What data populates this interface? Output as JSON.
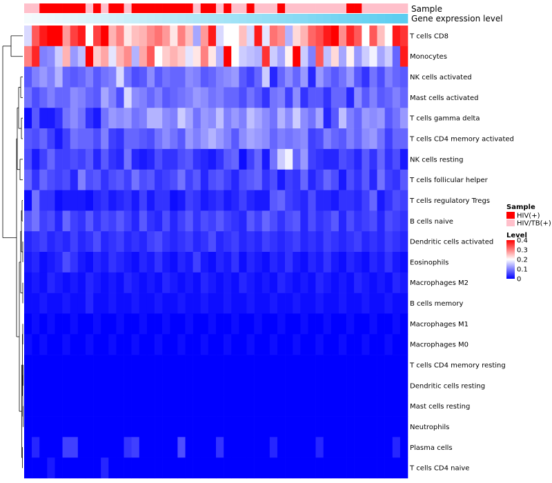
{
  "chart_data": {
    "type": "heatmap",
    "title": "",
    "annotation_labels": {
      "sample": "Sample",
      "gene": "Gene expression level"
    },
    "sample_groups": [
      "HIV/TB(+)",
      "HIV/TB(+)",
      "HIV(+)",
      "HIV(+)",
      "HIV(+)",
      "HIV(+)",
      "HIV(+)",
      "HIV(+)",
      "HIV/TB(+)",
      "HIV(+)",
      "HIV/TB(+)",
      "HIV(+)",
      "HIV(+)",
      "HIV/TB(+)",
      "HIV(+)",
      "HIV(+)",
      "HIV(+)",
      "HIV(+)",
      "HIV(+)",
      "HIV(+)",
      "HIV(+)",
      "HIV(+)",
      "HIV/TB(+)",
      "HIV(+)",
      "HIV(+)",
      "HIV/TB(+)",
      "HIV(+)",
      "HIV/TB(+)",
      "HIV/TB(+)",
      "HIV(+)",
      "HIV/TB(+)",
      "HIV/TB(+)",
      "HIV/TB(+)",
      "HIV(+)",
      "HIV/TB(+)",
      "HIV/TB(+)",
      "HIV/TB(+)",
      "HIV/TB(+)",
      "HIV/TB(+)",
      "HIV/TB(+)",
      "HIV/TB(+)",
      "HIV/TB(+)",
      "HIV(+)",
      "HIV(+)",
      "HIV/TB(+)",
      "HIV/TB(+)",
      "HIV/TB(+)",
      "HIV/TB(+)",
      "HIV/TB(+)",
      "HIV/TB(+)"
    ],
    "gene_expression": [
      0.0,
      0.02,
      0.04,
      0.06,
      0.08,
      0.1,
      0.12,
      0.14,
      0.16,
      0.18,
      0.2,
      0.22,
      0.24,
      0.27,
      0.29,
      0.31,
      0.33,
      0.35,
      0.37,
      0.39,
      0.41,
      0.43,
      0.45,
      0.47,
      0.49,
      0.51,
      0.53,
      0.55,
      0.57,
      0.59,
      0.61,
      0.63,
      0.65,
      0.67,
      0.69,
      0.71,
      0.73,
      0.76,
      0.78,
      0.8,
      0.82,
      0.84,
      0.86,
      0.88,
      0.9,
      0.92,
      0.94,
      0.96,
      0.98,
      1.0
    ],
    "rows": [
      "T cells CD8",
      "Monocytes",
      "NK cells activated",
      "Mast cells activated",
      "T cells gamma delta",
      "T cells CD4 memory activated",
      "NK cells resting",
      "T cells follicular helper",
      "T cells regulatory  Tregs",
      "B cells naive",
      "Dendritic cells activated",
      "Eosinophils",
      "Macrophages M2",
      "B cells memory",
      "Macrophages M1",
      "Macrophages M0",
      "T cells CD4 memory resting",
      "Dendritic cells resting",
      "Mast cells resting",
      "Neutrophils",
      "Plasma cells",
      "T cells CD4 naive"
    ],
    "values": [
      [
        0.17,
        0.33,
        0.38,
        0.4,
        0.4,
        0.28,
        0.35,
        0.38,
        0.2,
        0.35,
        0.4,
        0.26,
        0.3,
        0.22,
        0.25,
        0.26,
        0.29,
        0.31,
        0.28,
        0.22,
        0.3,
        0.25,
        0.13,
        0.28,
        0.38,
        0.17,
        0.2,
        0.2,
        0.25,
        0.17,
        0.38,
        0.18,
        0.31,
        0.29,
        0.14,
        0.23,
        0.26,
        0.32,
        0.34,
        0.38,
        0.4,
        0.29,
        0.37,
        0.33,
        0.2,
        0.33,
        0.25,
        0.2,
        0.38,
        0.36
      ],
      [
        0.3,
        0.37,
        0.1,
        0.11,
        0.16,
        0.26,
        0.12,
        0.15,
        0.4,
        0.24,
        0.27,
        0.18,
        0.26,
        0.29,
        0.14,
        0.27,
        0.33,
        0.2,
        0.24,
        0.26,
        0.24,
        0.18,
        0.22,
        0.3,
        0.22,
        0.14,
        0.4,
        0.2,
        0.16,
        0.15,
        0.14,
        0.36,
        0.16,
        0.13,
        0.21,
        0.4,
        0.16,
        0.1,
        0.33,
        0.15,
        0.23,
        0.13,
        0.21,
        0.12,
        0.16,
        0.19,
        0.13,
        0.16,
        0.08,
        0.38
      ],
      [
        0.07,
        0.1,
        0.12,
        0.1,
        0.14,
        0.08,
        0.07,
        0.08,
        0.1,
        0.07,
        0.09,
        0.1,
        0.17,
        0.09,
        0.06,
        0.07,
        0.11,
        0.07,
        0.09,
        0.08,
        0.08,
        0.11,
        0.1,
        0.07,
        0.08,
        0.1,
        0.11,
        0.12,
        0.07,
        0.05,
        0.08,
        0.16,
        0.03,
        0.08,
        0.11,
        0.08,
        0.12,
        0.03,
        0.12,
        0.09,
        0.07,
        0.09,
        0.12,
        0.07,
        0.04,
        0.09,
        0.06,
        0.1,
        0.08,
        0.07
      ],
      [
        0.09,
        0.06,
        0.08,
        0.1,
        0.08,
        0.08,
        0.11,
        0.1,
        0.08,
        0.07,
        0.13,
        0.1,
        0.06,
        0.17,
        0.11,
        0.1,
        0.08,
        0.1,
        0.07,
        0.08,
        0.09,
        0.1,
        0.12,
        0.11,
        0.09,
        0.1,
        0.08,
        0.08,
        0.06,
        0.09,
        0.07,
        0.04,
        0.09,
        0.1,
        0.05,
        0.11,
        0.04,
        0.07,
        0.07,
        0.04,
        0.08,
        0.08,
        0.03,
        0.11,
        0.07,
        0.1,
        0.07,
        0.08,
        0.1,
        0.08
      ],
      [
        0.01,
        0.07,
        0.02,
        0.02,
        0.04,
        0.09,
        0.11,
        0.09,
        0.04,
        0.02,
        0.09,
        0.12,
        0.11,
        0.12,
        0.09,
        0.1,
        0.14,
        0.14,
        0.11,
        0.1,
        0.16,
        0.13,
        0.09,
        0.12,
        0.11,
        0.15,
        0.1,
        0.12,
        0.1,
        0.15,
        0.13,
        0.11,
        0.09,
        0.14,
        0.11,
        0.16,
        0.11,
        0.09,
        0.13,
        0.03,
        0.07,
        0.15,
        0.1,
        0.08,
        0.12,
        0.11,
        0.12,
        0.07,
        0.09,
        0.12
      ],
      [
        0.07,
        0.06,
        0.08,
        0.05,
        0.02,
        0.05,
        0.09,
        0.08,
        0.08,
        0.06,
        0.1,
        0.05,
        0.04,
        0.08,
        0.08,
        0.07,
        0.06,
        0.09,
        0.11,
        0.09,
        0.07,
        0.12,
        0.1,
        0.12,
        0.14,
        0.12,
        0.1,
        0.07,
        0.11,
        0.13,
        0.12,
        0.11,
        0.08,
        0.1,
        0.09,
        0.1,
        0.11,
        0.05,
        0.06,
        0.1,
        0.08,
        0.07,
        0.1,
        0.08,
        0.11,
        0.12,
        0.09,
        0.05,
        0.08,
        0.08
      ],
      [
        0.06,
        0.02,
        0.05,
        0.08,
        0.05,
        0.05,
        0.06,
        0.05,
        0.07,
        0.03,
        0.07,
        0.04,
        0.03,
        0.09,
        0.03,
        0.02,
        0.03,
        0.06,
        0.04,
        0.04,
        0.06,
        0.07,
        0.04,
        0.03,
        0.02,
        0.04,
        0.07,
        0.08,
        0.01,
        0.05,
        0.08,
        0.02,
        0.09,
        0.16,
        0.19,
        0.08,
        0.12,
        0.05,
        0.04,
        0.03,
        0.03,
        0.06,
        0.05,
        0.03,
        0.07,
        0.04,
        0.08,
        0.04,
        0.06,
        0.02
      ],
      [
        0.08,
        0.04,
        0.08,
        0.06,
        0.05,
        0.06,
        0.03,
        0.1,
        0.06,
        0.07,
        0.04,
        0.06,
        0.07,
        0.05,
        0.09,
        0.06,
        0.07,
        0.04,
        0.05,
        0.06,
        0.09,
        0.05,
        0.07,
        0.03,
        0.06,
        0.07,
        0.05,
        0.03,
        0.06,
        0.07,
        0.08,
        0.04,
        0.06,
        0.02,
        0.05,
        0.04,
        0.08,
        0.03,
        0.05,
        0.08,
        0.06,
        0.02,
        0.06,
        0.04,
        0.07,
        0.03,
        0.09,
        0.05,
        0.04,
        0.07
      ],
      [
        0.01,
        0.09,
        0.04,
        0.04,
        0.01,
        0.02,
        0.02,
        0.02,
        0.01,
        0.03,
        0.04,
        0.02,
        0.03,
        0.04,
        0.02,
        0.05,
        0.02,
        0.04,
        0.04,
        0.01,
        0.02,
        0.05,
        0.04,
        0.02,
        0.03,
        0.04,
        0.02,
        0.03,
        0.05,
        0.03,
        0.02,
        0.02,
        0.07,
        0.08,
        0.05,
        0.04,
        0.03,
        0.06,
        0.03,
        0.03,
        0.02,
        0.04,
        0.04,
        0.03,
        0.05,
        0.08,
        0.02,
        0.04,
        0.06,
        0.05
      ],
      [
        0.07,
        0.09,
        0.05,
        0.06,
        0.03,
        0.08,
        0.05,
        0.04,
        0.07,
        0.04,
        0.06,
        0.05,
        0.07,
        0.05,
        0.03,
        0.07,
        0.04,
        0.03,
        0.06,
        0.03,
        0.05,
        0.07,
        0.04,
        0.06,
        0.05,
        0.07,
        0.05,
        0.04,
        0.03,
        0.07,
        0.05,
        0.08,
        0.06,
        0.04,
        0.06,
        0.07,
        0.03,
        0.06,
        0.04,
        0.05,
        0.07,
        0.03,
        0.06,
        0.04,
        0.05,
        0.06,
        0.03,
        0.06,
        0.05,
        0.04
      ],
      [
        0.03,
        0.04,
        0.05,
        0.03,
        0.04,
        0.03,
        0.05,
        0.03,
        0.04,
        0.06,
        0.03,
        0.04,
        0.05,
        0.03,
        0.04,
        0.03,
        0.05,
        0.06,
        0.04,
        0.03,
        0.04,
        0.05,
        0.03,
        0.04,
        0.06,
        0.03,
        0.04,
        0.05,
        0.03,
        0.04,
        0.03,
        0.05,
        0.04,
        0.03,
        0.04,
        0.05,
        0.03,
        0.04,
        0.03,
        0.05,
        0.04,
        0.03,
        0.04,
        0.05,
        0.03,
        0.04,
        0.03,
        0.05,
        0.04,
        0.03
      ],
      [
        0.02,
        0.03,
        0.01,
        0.02,
        0.03,
        0.06,
        0.04,
        0.02,
        0.01,
        0.03,
        0.02,
        0.04,
        0.03,
        0.02,
        0.01,
        0.03,
        0.02,
        0.04,
        0.02,
        0.01,
        0.03,
        0.02,
        0.05,
        0.02,
        0.01,
        0.03,
        0.02,
        0.04,
        0.01,
        0.03,
        0.02,
        0.01,
        0.03,
        0.02,
        0.04,
        0.02,
        0.01,
        0.03,
        0.02,
        0.04,
        0.02,
        0.01,
        0.03,
        0.02,
        0.01,
        0.03,
        0.02,
        0.04,
        0.02,
        0.01
      ],
      [
        0.01,
        0.02,
        0.01,
        0.03,
        0.02,
        0.01,
        0.02,
        0.01,
        0.03,
        0.02,
        0.01,
        0.02,
        0.01,
        0.03,
        0.02,
        0.01,
        0.02,
        0.01,
        0.03,
        0.02,
        0.01,
        0.02,
        0.01,
        0.03,
        0.02,
        0.01,
        0.02,
        0.01,
        0.03,
        0.02,
        0.01,
        0.02,
        0.01,
        0.03,
        0.02,
        0.01,
        0.02,
        0.01,
        0.03,
        0.02,
        0.01,
        0.02,
        0.01,
        0.03,
        0.02,
        0.01,
        0.02,
        0.01,
        0.03,
        0.02
      ],
      [
        0.01,
        0.01,
        0.02,
        0.01,
        0.01,
        0.02,
        0.01,
        0.01,
        0.03,
        0.01,
        0.01,
        0.02,
        0.01,
        0.01,
        0.02,
        0.01,
        0.01,
        0.02,
        0.01,
        0.01,
        0.02,
        0.01,
        0.01,
        0.02,
        0.01,
        0.01,
        0.02,
        0.01,
        0.01,
        0.02,
        0.01,
        0.01,
        0.02,
        0.01,
        0.01,
        0.02,
        0.01,
        0.01,
        0.02,
        0.01,
        0.01,
        0.02,
        0.01,
        0.01,
        0.02,
        0.01,
        0.01,
        0.02,
        0.01,
        0.01
      ],
      [
        0.0,
        0.01,
        0.0,
        0.01,
        0.0,
        0.0,
        0.01,
        0.0,
        0.0,
        0.01,
        0.0,
        0.0,
        0.01,
        0.0,
        0.0,
        0.01,
        0.0,
        0.0,
        0.01,
        0.0,
        0.0,
        0.01,
        0.0,
        0.0,
        0.01,
        0.0,
        0.0,
        0.01,
        0.0,
        0.0,
        0.01,
        0.0,
        0.0,
        0.01,
        0.0,
        0.0,
        0.01,
        0.0,
        0.0,
        0.01,
        0.0,
        0.0,
        0.01,
        0.0,
        0.0,
        0.01,
        0.0,
        0.0,
        0.01,
        0.0
      ],
      [
        0.01,
        0.0,
        0.01,
        0.0,
        0.0,
        0.01,
        0.0,
        0.0,
        0.01,
        0.0,
        0.0,
        0.01,
        0.0,
        0.0,
        0.01,
        0.0,
        0.0,
        0.01,
        0.0,
        0.0,
        0.01,
        0.0,
        0.0,
        0.01,
        0.0,
        0.0,
        0.01,
        0.0,
        0.0,
        0.01,
        0.0,
        0.0,
        0.01,
        0.0,
        0.0,
        0.01,
        0.0,
        0.0,
        0.01,
        0.0,
        0.0,
        0.01,
        0.0,
        0.0,
        0.01,
        0.0,
        0.0,
        0.01,
        0.0,
        0.0
      ],
      [
        0.0,
        0.0,
        0.0,
        0.0,
        0.0,
        0.0,
        0.0,
        0.0,
        0.0,
        0.0,
        0.0,
        0.0,
        0.0,
        0.0,
        0.0,
        0.0,
        0.0,
        0.0,
        0.0,
        0.0,
        0.0,
        0.0,
        0.0,
        0.0,
        0.0,
        0.0,
        0.0,
        0.0,
        0.0,
        0.0,
        0.0,
        0.0,
        0.0,
        0.0,
        0.0,
        0.0,
        0.0,
        0.0,
        0.0,
        0.0,
        0.0,
        0.0,
        0.0,
        0.0,
        0.0,
        0.0,
        0.0,
        0.0,
        0.0,
        0.0
      ],
      [
        0.0,
        0.0,
        0.0,
        0.0,
        0.0,
        0.0,
        0.0,
        0.0,
        0.0,
        0.0,
        0.0,
        0.0,
        0.0,
        0.0,
        0.0,
        0.0,
        0.0,
        0.0,
        0.0,
        0.0,
        0.0,
        0.0,
        0.0,
        0.0,
        0.0,
        0.0,
        0.0,
        0.0,
        0.0,
        0.0,
        0.0,
        0.0,
        0.0,
        0.0,
        0.0,
        0.0,
        0.0,
        0.0,
        0.0,
        0.0,
        0.0,
        0.0,
        0.0,
        0.0,
        0.0,
        0.0,
        0.0,
        0.0,
        0.0,
        0.0
      ],
      [
        0.0,
        0.0,
        0.0,
        0.0,
        0.0,
        0.0,
        0.0,
        0.0,
        0.0,
        0.0,
        0.0,
        0.0,
        0.0,
        0.0,
        0.0,
        0.0,
        0.0,
        0.0,
        0.0,
        0.0,
        0.0,
        0.0,
        0.0,
        0.0,
        0.0,
        0.0,
        0.0,
        0.0,
        0.0,
        0.0,
        0.0,
        0.0,
        0.0,
        0.0,
        0.0,
        0.0,
        0.0,
        0.0,
        0.0,
        0.0,
        0.0,
        0.0,
        0.0,
        0.0,
        0.0,
        0.0,
        0.0,
        0.0,
        0.0,
        0.0
      ],
      [
        0.0,
        0.0,
        0.0,
        0.0,
        0.0,
        0.0,
        0.0,
        0.0,
        0.0,
        0.0,
        0.0,
        0.0,
        0.0,
        0.0,
        0.0,
        0.0,
        0.0,
        0.0,
        0.0,
        0.0,
        0.0,
        0.0,
        0.0,
        0.0,
        0.0,
        0.0,
        0.0,
        0.0,
        0.0,
        0.0,
        0.0,
        0.0,
        0.0,
        0.0,
        0.0,
        0.0,
        0.0,
        0.0,
        0.0,
        0.0,
        0.0,
        0.0,
        0.0,
        0.0,
        0.0,
        0.0,
        0.0,
        0.0,
        0.0,
        0.0
      ],
      [
        0.0,
        0.03,
        0.0,
        0.0,
        0.0,
        0.05,
        0.05,
        0.0,
        0.0,
        0.0,
        0.0,
        0.0,
        0.0,
        0.04,
        0.05,
        0.0,
        0.0,
        0.0,
        0.0,
        0.0,
        0.06,
        0.0,
        0.0,
        0.0,
        0.0,
        0.04,
        0.0,
        0.0,
        0.0,
        0.0,
        0.0,
        0.0,
        0.03,
        0.0,
        0.0,
        0.0,
        0.0,
        0.0,
        0.03,
        0.0,
        0.0,
        0.0,
        0.0,
        0.0,
        0.0,
        0.0,
        0.0,
        0.0,
        0.03,
        0.0
      ],
      [
        0.0,
        0.0,
        0.0,
        0.02,
        0.0,
        0.0,
        0.0,
        0.0,
        0.0,
        0.0,
        0.03,
        0.0,
        0.0,
        0.0,
        0.0,
        0.0,
        0.0,
        0.0,
        0.0,
        0.0,
        0.0,
        0.0,
        0.0,
        0.0,
        0.0,
        0.0,
        0.0,
        0.0,
        0.0,
        0.0,
        0.0,
        0.0,
        0.0,
        0.0,
        0.0,
        0.0,
        0.0,
        0.0,
        0.0,
        0.0,
        0.0,
        0.0,
        0.0,
        0.0,
        0.0,
        0.0,
        0.0,
        0.0,
        0.0,
        0.0
      ]
    ],
    "value_range": [
      0,
      0.4
    ],
    "colorscale": [
      "#0000ff",
      "#ffffff",
      "#ff0000"
    ],
    "legend": {
      "sample_title": "Sample",
      "sample_items": [
        {
          "label": "HIV(+)",
          "color": "#ff0000"
        },
        {
          "label": "HIV/TB(+)",
          "color": "#ffc0cb"
        }
      ],
      "level_title": "Level",
      "level_ticks": [
        "0.4",
        "0.3",
        "0.2",
        "0.1",
        "0"
      ],
      "level_tick_values": [
        0.4,
        0.3,
        0.2,
        0.1,
        0
      ],
      "placement": "right"
    },
    "gene_colorscale": [
      "#f5fbfd",
      "#5bcdf0"
    ]
  }
}
